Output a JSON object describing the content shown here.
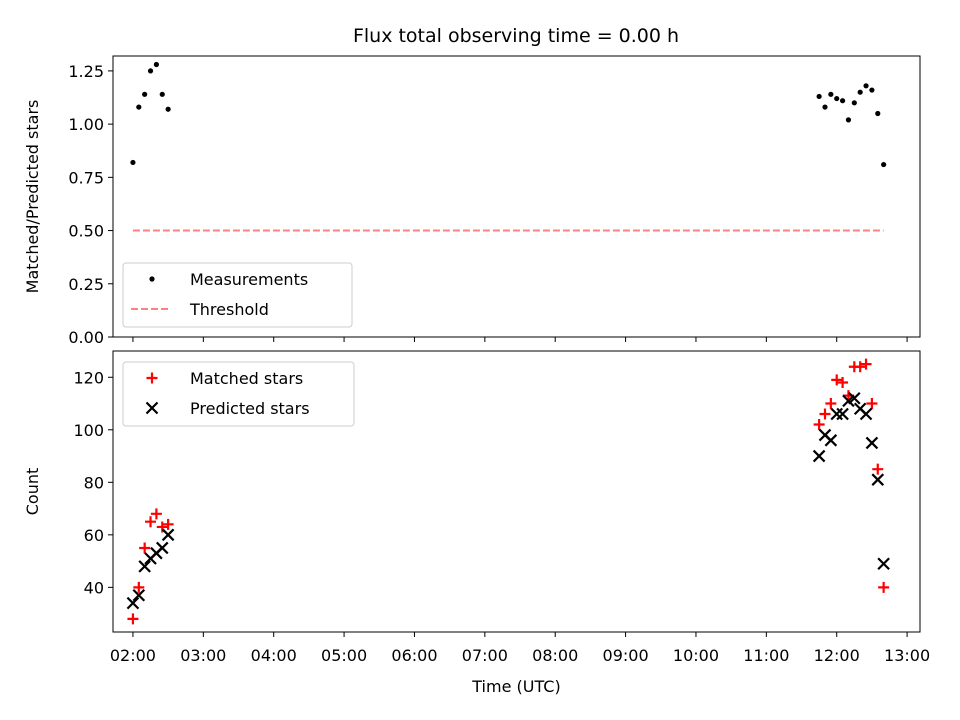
{
  "title": "Flux total observing time = 0.00 h",
  "chart_data": [
    {
      "type": "scatter",
      "ylabel": "Matched/Predicted stars",
      "xlabel": "",
      "xlim": [
        "01:43",
        "13:11"
      ],
      "ylim": [
        0,
        1.32
      ],
      "yticks": [
        0,
        0.25,
        0.5,
        0.75,
        1.0,
        1.25
      ],
      "ytick_labels": [
        "0.00",
        "0.25",
        "0.50",
        "0.75",
        "1.00",
        "1.25"
      ],
      "xticks": [
        "02:00",
        "03:00",
        "04:00",
        "05:00",
        "06:00",
        "07:00",
        "08:00",
        "09:00",
        "10:00",
        "11:00",
        "12:00",
        "13:00"
      ],
      "show_xtick_labels": false,
      "legend_position": "lower-left",
      "series": [
        {
          "name": "Measurements",
          "kind": "points",
          "color": "#000000",
          "x": [
            "02:00",
            "02:05",
            "02:10",
            "02:15",
            "02:20",
            "02:25",
            "02:30",
            "11:45",
            "11:50",
            "11:55",
            "12:00",
            "12:05",
            "12:10",
            "12:15",
            "12:20",
            "12:25",
            "12:30",
            "12:35",
            "12:40"
          ],
          "y": [
            0.82,
            1.08,
            1.14,
            1.25,
            1.28,
            1.14,
            1.07,
            1.13,
            1.08,
            1.14,
            1.12,
            1.11,
            1.02,
            1.1,
            1.15,
            1.18,
            1.16,
            1.05,
            0.81
          ]
        },
        {
          "name": "Threshold",
          "kind": "dashed-line",
          "color": "#ff8080",
          "x": [
            "02:00",
            "12:40"
          ],
          "y": [
            0.5,
            0.5
          ]
        }
      ]
    },
    {
      "type": "scatter",
      "ylabel": "Count",
      "xlabel": "Time (UTC)",
      "xlim": [
        "01:43",
        "13:11"
      ],
      "ylim": [
        23,
        130
      ],
      "yticks": [
        40,
        60,
        80,
        100,
        120
      ],
      "ytick_labels": [
        "40",
        "60",
        "80",
        "100",
        "120"
      ],
      "xticks": [
        "02:00",
        "03:00",
        "04:00",
        "05:00",
        "06:00",
        "07:00",
        "08:00",
        "09:00",
        "10:00",
        "11:00",
        "12:00",
        "13:00"
      ],
      "show_xtick_labels": true,
      "legend_position": "upper-left",
      "series": [
        {
          "name": "Matched stars",
          "kind": "plus",
          "color": "#ff0000",
          "x": [
            "02:00",
            "02:05",
            "02:10",
            "02:15",
            "02:20",
            "02:25",
            "02:30",
            "11:45",
            "11:50",
            "11:55",
            "12:00",
            "12:05",
            "12:10",
            "12:15",
            "12:20",
            "12:25",
            "12:30",
            "12:35",
            "12:40"
          ],
          "y": [
            28,
            40,
            55,
            65,
            68,
            63,
            64,
            102,
            106,
            110,
            119,
            118,
            113,
            124,
            124,
            125,
            110,
            85,
            40
          ]
        },
        {
          "name": "Predicted stars",
          "kind": "cross",
          "color": "#000000",
          "x": [
            "02:00",
            "02:05",
            "02:10",
            "02:15",
            "02:20",
            "02:25",
            "02:30",
            "11:45",
            "11:50",
            "11:55",
            "12:00",
            "12:05",
            "12:10",
            "12:15",
            "12:20",
            "12:25",
            "12:30",
            "12:35",
            "12:40"
          ],
          "y": [
            34,
            37,
            48,
            51,
            53,
            55,
            60,
            90,
            98,
            96,
            106,
            106,
            111,
            112,
            108,
            106,
            95,
            81,
            49
          ]
        }
      ]
    }
  ]
}
